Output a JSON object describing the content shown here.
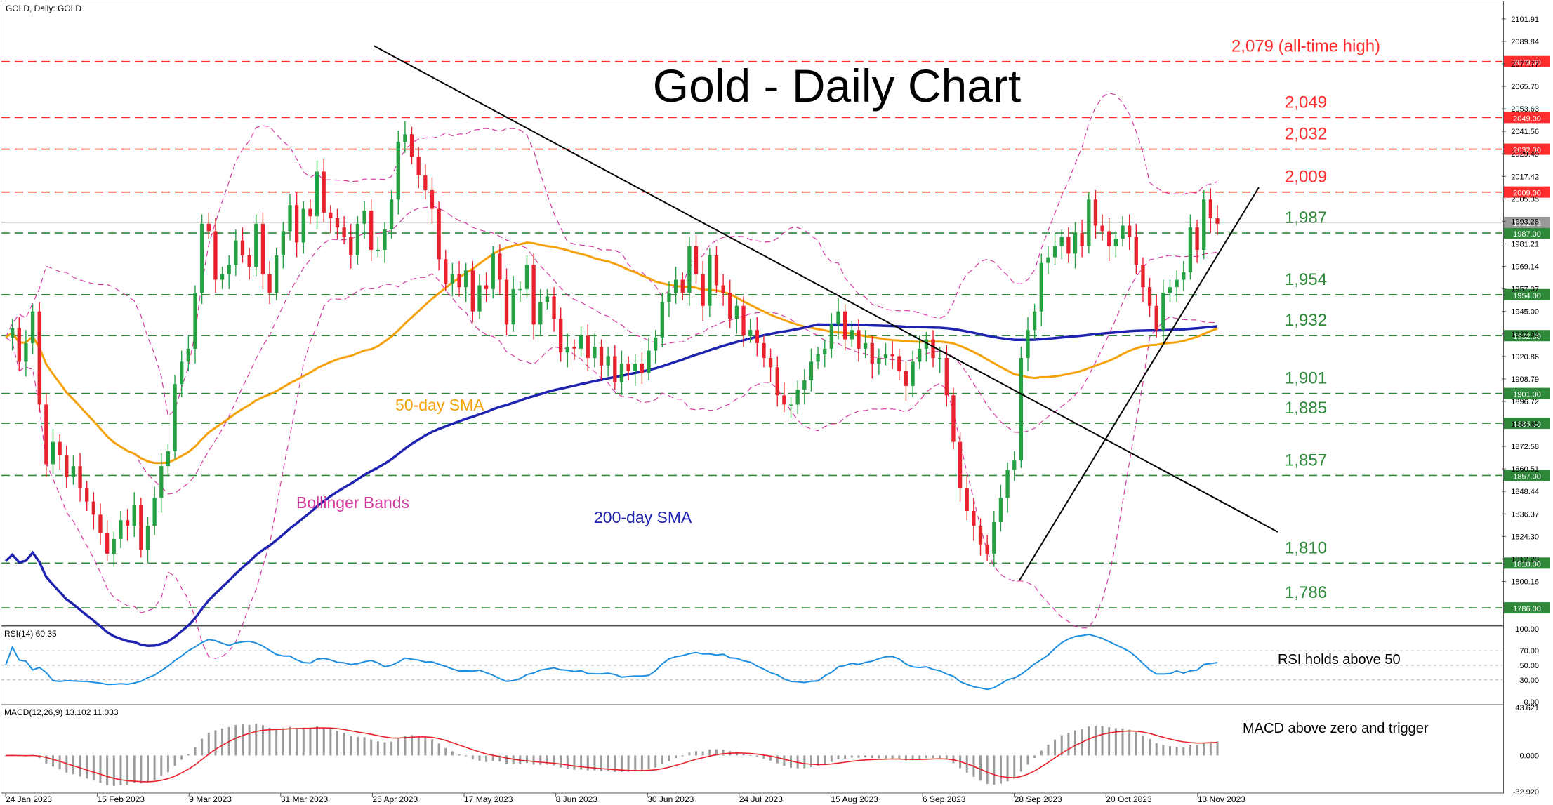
{
  "header": {
    "symbol_label": "GOLD, Daily:  GOLD"
  },
  "annotations": {
    "title": "Gold - Daily Chart",
    "sma50_label": "50-day SMA",
    "sma200_label": "200-day SMA",
    "bollinger_label": "Bollinger Bands",
    "rsi_note": "RSI holds above 50",
    "macd_note": "MACD above zero and trigger"
  },
  "colors": {
    "bull": "#26a043",
    "bear": "#e8222c",
    "sma50": "#f5a10a",
    "sma200": "#1f23b0",
    "bollinger": "#d63aa0",
    "resistance": "#ff2d2d",
    "support": "#2e8a3a",
    "rsi": "#1e8fe0",
    "macd_hist": "#9a9a9a",
    "macd_signal": "#e8222c"
  },
  "price_levels": [
    {
      "label": "2,079 (all-time high)",
      "value": 2079.0,
      "tag": "2079.00",
      "kind": "resistance"
    },
    {
      "label": "2,049",
      "value": 2049.0,
      "tag": "2049.00",
      "kind": "resistance"
    },
    {
      "label": "2,032",
      "value": 2032.0,
      "tag": "2032.00",
      "kind": "resistance"
    },
    {
      "label": "2,009",
      "value": 2009.0,
      "tag": "2009.00",
      "kind": "resistance"
    },
    {
      "label": "1,987",
      "value": 1987.0,
      "tag": "1987.00",
      "kind": "support"
    },
    {
      "label": "1,954",
      "value": 1954.0,
      "tag": "1954.00",
      "kind": "support"
    },
    {
      "label": "1,932",
      "value": 1932.0,
      "tag": "1932.00",
      "kind": "support"
    },
    {
      "label": "1,901",
      "value": 1901.0,
      "tag": "1901.00",
      "kind": "support"
    },
    {
      "label": "1,885",
      "value": 1885.0,
      "tag": "1885.00",
      "kind": "support"
    },
    {
      "label": "1,857",
      "value": 1857.0,
      "tag": "1857.00",
      "kind": "support"
    },
    {
      "label": "1,810",
      "value": 1810.0,
      "tag": "1810.00",
      "kind": "support"
    },
    {
      "label": "1,786",
      "value": 1786.0,
      "tag": "1786.00",
      "kind": "support"
    }
  ],
  "current_price": {
    "value": 1992.73,
    "tag": "1992.73"
  },
  "chart_data": [
    {
      "type": "candlestick",
      "title": "Gold - Daily Chart",
      "ylim": [
        1777,
        2109
      ],
      "y_ticks": [
        "2101.91",
        "2089.84",
        "2077.77",
        "2065.70",
        "2053.63",
        "2041.56",
        "2029.49",
        "2017.42",
        "2005.35",
        "1993.28",
        "1981.21",
        "1969.14",
        "1957.07",
        "1945.00",
        "1932.93",
        "1920.86",
        "1908.79",
        "1896.72",
        "1884.65",
        "1872.58",
        "1860.51",
        "1848.44",
        "1836.37",
        "1824.30",
        "1812.23",
        "1800.16"
      ],
      "x_tick_labels": [
        "24 Jan 2023",
        "15 Feb 2023",
        "9 Mar 2023",
        "31 Mar 2023",
        "25 Apr 2023",
        "17 May 2023",
        "8 Jun 2023",
        "30 Jun 2023",
        "24 Jul 2023",
        "15 Aug 2023",
        "6 Sep 2023",
        "28 Sep 2023",
        "20 Oct 2023",
        "13 Nov 2023"
      ],
      "close_series": [
        1931,
        1936,
        1918,
        1928,
        1945,
        1895,
        1863,
        1875,
        1868,
        1856,
        1862,
        1850,
        1843,
        1836,
        1826,
        1815,
        1823,
        1833,
        1830,
        1841,
        1817,
        1830,
        1845,
        1862,
        1870,
        1906,
        1918,
        1925,
        1955,
        1992,
        1988,
        1962,
        1965,
        1970,
        1983,
        1975,
        1969,
        1992,
        1965,
        1955,
        1975,
        1988,
        2002,
        1982,
        2000,
        1996,
        2020,
        1998,
        1995,
        1990,
        1985,
        1975,
        1992,
        1999,
        1978,
        1978,
        1989,
        2005,
        2036,
        2040,
        2028,
        2018,
        2010,
        2000,
        1973,
        1960,
        1965,
        1958,
        1967,
        1945,
        1959,
        1957,
        1976,
        1962,
        1938,
        1957,
        1957,
        1970,
        1938,
        1950,
        1953,
        1941,
        1923,
        1926,
        1925,
        1932,
        1920,
        1926,
        1916,
        1921,
        1907,
        1917,
        1913,
        1917,
        1912,
        1924,
        1931,
        1950,
        1955,
        1962,
        1955,
        1980,
        1965,
        1948,
        1975,
        1959,
        1955,
        1941,
        1948,
        1932,
        1935,
        1928,
        1920,
        1915,
        1900,
        1895,
        1895,
        1903,
        1908,
        1918,
        1922,
        1925,
        1938,
        1945,
        1930,
        1935,
        1925,
        1928,
        1917,
        1920,
        1922,
        1921,
        1913,
        1905,
        1918,
        1925,
        1930,
        1920,
        1920,
        1900,
        1875,
        1850,
        1838,
        1830,
        1820,
        1815,
        1832,
        1845,
        1860,
        1865,
        1920,
        1935,
        1945,
        1971,
        1974,
        1980,
        1985,
        1976,
        1987,
        1980,
        2005,
        1991,
        1988,
        1980,
        1984,
        1991,
        1985,
        1970,
        1958,
        1948,
        1935,
        1955,
        1958,
        1962,
        1966,
        1990,
        1978,
        2005,
        1995,
        1992
      ]
    },
    {
      "type": "line",
      "title": "RSI(14) 60.35",
      "ylim": [
        0,
        100
      ],
      "y_ticks": [
        "100.00",
        "70.00",
        "50.00",
        "30.00",
        "0.00"
      ]
    },
    {
      "type": "bar",
      "title": "MACD(12,26,9) 13.102 11.033",
      "ylim": [
        -32.92,
        43.62
      ],
      "y_ticks": [
        "43.621",
        "0.000",
        "-32.920"
      ]
    }
  ]
}
